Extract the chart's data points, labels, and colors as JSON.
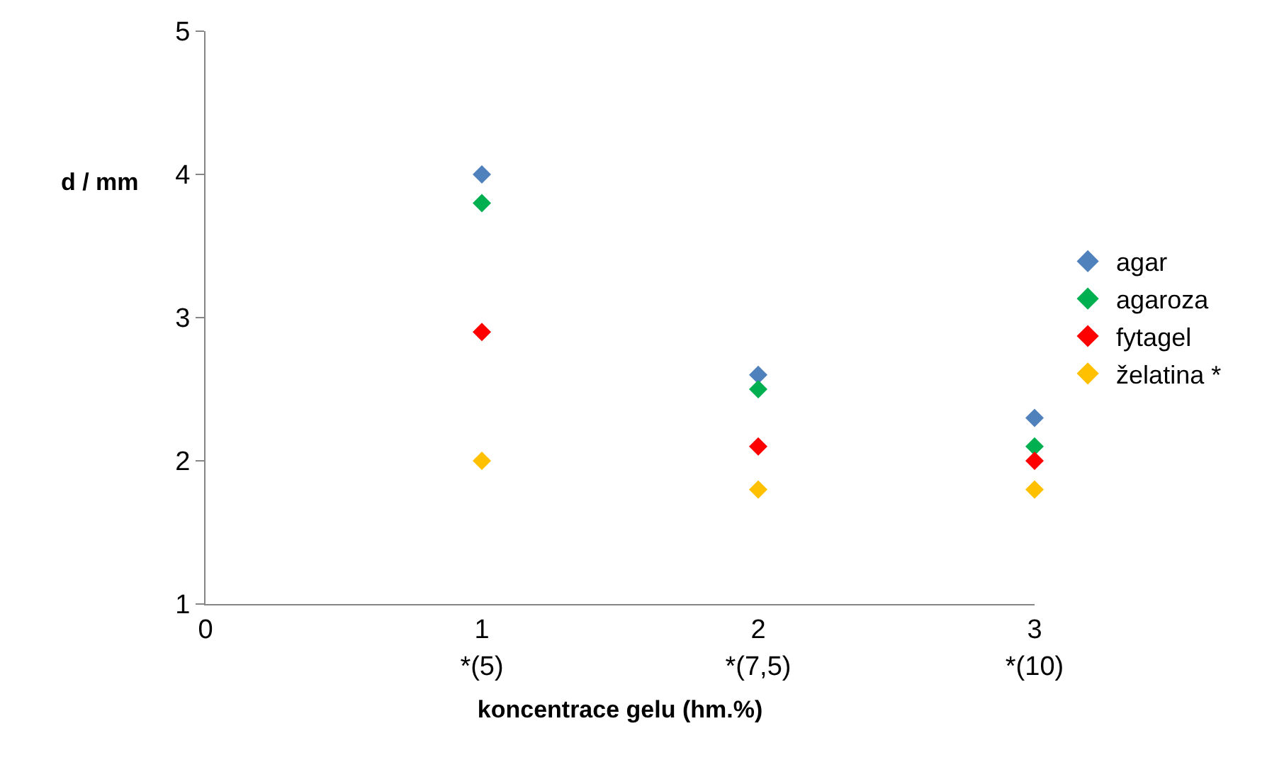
{
  "chart_data": {
    "type": "scatter",
    "xlabel": "koncentrace gelu (hm.%)",
    "ylabel": "d / mm",
    "x": [
      1,
      2,
      3
    ],
    "series": [
      {
        "name": "agar",
        "color": "#4f81bd",
        "values": [
          4.0,
          2.6,
          2.3
        ]
      },
      {
        "name": "agaroza",
        "color": "#00b050",
        "values": [
          3.8,
          2.5,
          2.1
        ]
      },
      {
        "name": "fytagel",
        "color": "#ff0000",
        "values": [
          2.9,
          2.1,
          2.0
        ]
      },
      {
        "name": "želatina *",
        "color": "#ffc000",
        "values": [
          2.0,
          1.8,
          1.8
        ]
      }
    ],
    "xlim": [
      0,
      3
    ],
    "xticks": [
      0,
      1,
      2,
      3
    ],
    "x2lim": [
      2.5,
      10
    ],
    "x2ticks": [
      {
        "value": 5,
        "label": "*(5)"
      },
      {
        "value": 7.5,
        "label": "*(7,5)"
      },
      {
        "value": 10,
        "label": "*(10)"
      }
    ],
    "ylim": [
      1,
      5
    ],
    "yticks": [
      1,
      2,
      3,
      4,
      5
    ],
    "legend": "right",
    "marker": "diamond"
  }
}
